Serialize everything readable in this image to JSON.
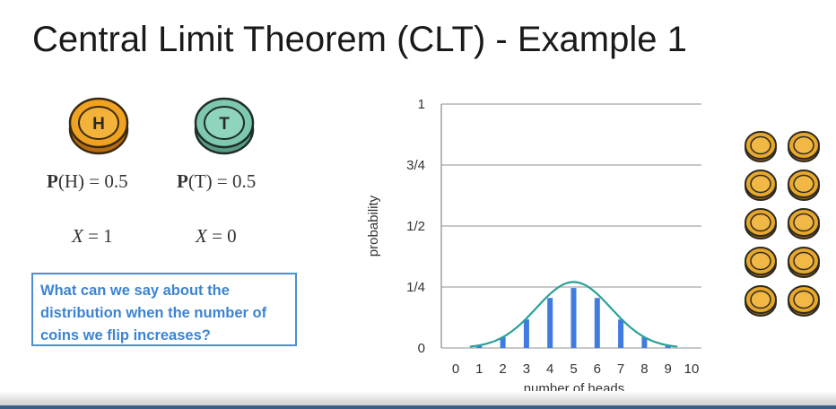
{
  "title": "Central Limit Theorem (CLT) - Example 1",
  "coins": {
    "heads_letter": "H",
    "tails_letter": "T",
    "heads_color": "#f0a320",
    "tails_color": "#7fc8b0",
    "stack_color": "#e8a82a"
  },
  "equations": {
    "p_label": "P",
    "heads_arg": "(H) = 0.5",
    "tails_arg": "(T) = 0.5",
    "x_var": "X",
    "x_heads": " = 1",
    "x_tails": " = 0"
  },
  "question": "What can we say about the distribution when the number of coins we flip increases?",
  "chart_data": {
    "type": "bar",
    "xlabel": "number of heads",
    "ylabel": "probability",
    "categories": [
      "0",
      "1",
      "2",
      "3",
      "4",
      "5",
      "6",
      "7",
      "8",
      "9",
      "10"
    ],
    "values": [
      0.001,
      0.01,
      0.044,
      0.117,
      0.205,
      0.246,
      0.205,
      0.117,
      0.044,
      0.01,
      0.001
    ],
    "ylim": [
      0,
      1
    ],
    "yticks": [
      {
        "value": 0,
        "label": "0"
      },
      {
        "value": 0.25,
        "label": "1/4"
      },
      {
        "value": 0.5,
        "label": "1/2"
      },
      {
        "value": 0.75,
        "label": "3/4"
      },
      {
        "value": 1,
        "label": "1"
      }
    ],
    "grid": true,
    "bar_color": "#3f7be0",
    "curve_color": "#2aa198",
    "overlay": "normal curve"
  }
}
